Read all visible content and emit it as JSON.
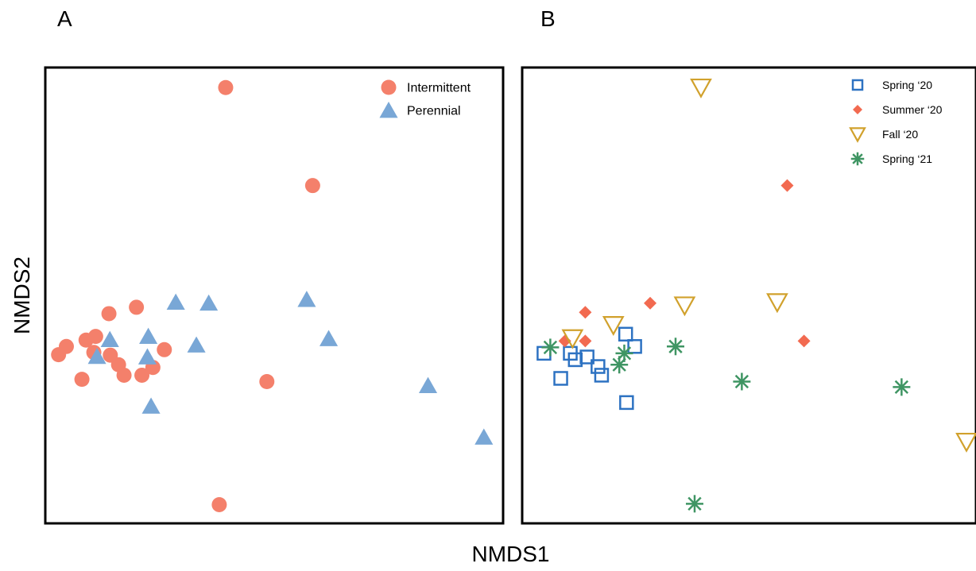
{
  "panel_labels": {
    "a": "A",
    "b": "B"
  },
  "axes": {
    "xlabel": "NMDS1",
    "ylabel": "NMDS2"
  },
  "colors": {
    "intermittent": "#f4806b",
    "perennial": "#79a7d6",
    "spring20": "#2d72c2",
    "summer20": "#f26a50",
    "fall20": "#d1a12c",
    "spring21": "#3f9563"
  },
  "chart_data": [
    {
      "type": "scatter",
      "panel": "A",
      "xlabel": "NMDS1",
      "ylabel": "NMDS2",
      "xlim": [
        0,
        100
      ],
      "ylim": [
        0,
        100
      ],
      "grid": false,
      "legend_position": "top-right",
      "series": [
        {
          "name": "Intermittent",
          "marker": "circle",
          "points": [
            [
              39.4,
              95.6
            ],
            [
              58.4,
              74.1
            ],
            [
              13.9,
              46.0
            ],
            [
              19.9,
              47.4
            ],
            [
              4.6,
              38.8
            ],
            [
              8.9,
              40.2
            ],
            [
              11.0,
              41.0
            ],
            [
              2.9,
              37.0
            ],
            [
              10.6,
              37.5
            ],
            [
              14.2,
              36.9
            ],
            [
              16.0,
              34.8
            ],
            [
              23.5,
              34.2
            ],
            [
              26.0,
              38.1
            ],
            [
              21.1,
              32.5
            ],
            [
              17.2,
              32.5
            ],
            [
              8.0,
              31.6
            ],
            [
              48.4,
              31.1
            ],
            [
              38.0,
              4.1
            ]
          ]
        },
        {
          "name": "Perennial",
          "marker": "triangle",
          "points": [
            [
              28.5,
              48.5
            ],
            [
              35.7,
              48.3
            ],
            [
              57.1,
              49.1
            ],
            [
              14.1,
              40.3
            ],
            [
              22.5,
              41.0
            ],
            [
              33.0,
              39.1
            ],
            [
              61.9,
              40.5
            ],
            [
              11.3,
              36.6
            ],
            [
              22.3,
              36.5
            ],
            [
              23.1,
              25.7
            ],
            [
              83.6,
              30.2
            ],
            [
              95.8,
              18.9
            ]
          ]
        }
      ]
    },
    {
      "type": "scatter",
      "panel": "B",
      "xlabel": "NMDS1",
      "ylabel": "NMDS2",
      "xlim": [
        0,
        100
      ],
      "ylim": [
        0,
        100
      ],
      "grid": false,
      "legend_position": "top-right",
      "series": [
        {
          "name": "Spring ‘20",
          "marker": "square",
          "points": [
            [
              22.8,
              41.5
            ],
            [
              24.8,
              38.8
            ],
            [
              4.8,
              37.3
            ],
            [
              10.6,
              37.3
            ],
            [
              14.3,
              36.5
            ],
            [
              11.7,
              35.9
            ],
            [
              16.7,
              34.4
            ],
            [
              17.5,
              32.5
            ],
            [
              8.5,
              31.8
            ],
            [
              23.0,
              26.5
            ]
          ]
        },
        {
          "name": "Summer ‘20",
          "marker": "diamond",
          "points": [
            [
              58.4,
              74.1
            ],
            [
              28.2,
              48.3
            ],
            [
              13.9,
              46.3
            ],
            [
              9.4,
              40.0
            ],
            [
              13.9,
              40.0
            ],
            [
              62.1,
              40.0
            ]
          ]
        },
        {
          "name": "Fall ‘20",
          "marker": "triangle-down",
          "points": [
            [
              39.4,
              95.6
            ],
            [
              56.2,
              48.5
            ],
            [
              35.8,
              47.8
            ],
            [
              20.1,
              43.5
            ],
            [
              11.1,
              40.6
            ],
            [
              97.9,
              17.9
            ]
          ]
        },
        {
          "name": "Spring ‘21",
          "marker": "star",
          "points": [
            [
              6.2,
              38.6
            ],
            [
              33.8,
              38.8
            ],
            [
              22.5,
              37.3
            ],
            [
              21.4,
              34.8
            ],
            [
              48.4,
              31.1
            ],
            [
              83.6,
              29.9
            ],
            [
              38.0,
              4.3
            ]
          ]
        }
      ]
    }
  ]
}
